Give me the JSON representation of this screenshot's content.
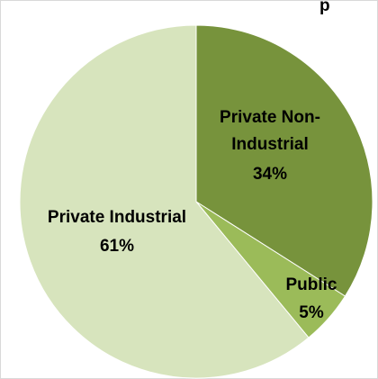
{
  "chart_data": {
    "type": "pie",
    "title_fragment": "p",
    "slices": [
      {
        "label_line1": "Private Non-",
        "label_line2": "Industrial",
        "pct_label": "34%",
        "value": 34,
        "color": "#77933c"
      },
      {
        "label_line1": "Public",
        "label_line2": "",
        "pct_label": "5%",
        "value": 5,
        "color": "#9bbb59"
      },
      {
        "label_line1": "Private Industrial",
        "label_line2": "",
        "pct_label": "61%",
        "value": 61,
        "color": "#d7e4bd"
      }
    ],
    "start_angle_deg": 0,
    "direction": "clockwise"
  }
}
